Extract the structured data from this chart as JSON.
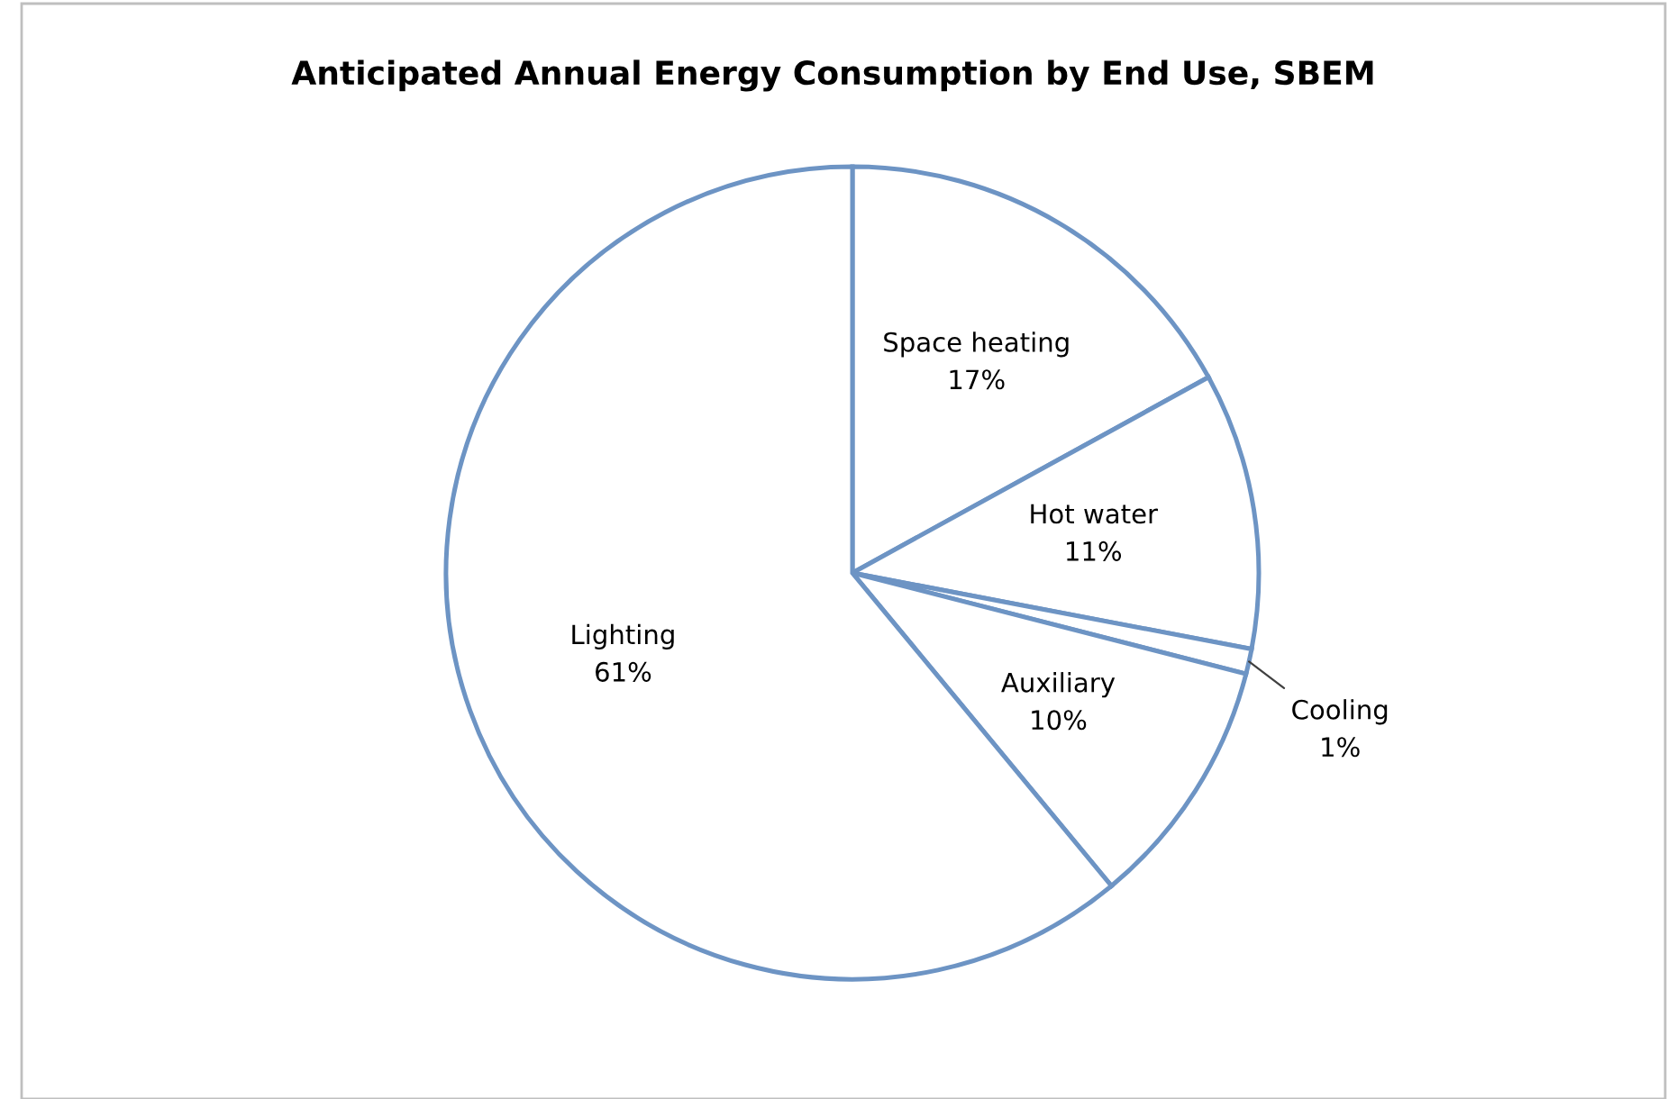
{
  "chart_data": {
    "type": "pie",
    "title": "Anticipated Annual Energy Consumption by End Use, SBEM",
    "categories": [
      "Space heating",
      "Hot water",
      "Cooling",
      "Auxiliary",
      "Lighting"
    ],
    "values": [
      17,
      11,
      1,
      10,
      61
    ],
    "value_labels": [
      "17%",
      "11%",
      "1%",
      "10%",
      "61%"
    ],
    "colors": [
      "#ffffff",
      "#ffffff",
      "#ffffff",
      "#ffffff",
      "#ffffff"
    ],
    "legend": false
  }
}
